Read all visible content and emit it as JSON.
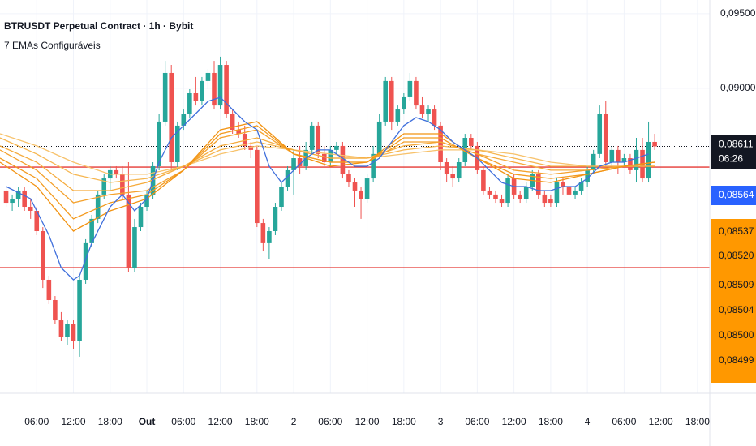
{
  "chart_data": {
    "type": "candlestick",
    "title": "BTRUSDT Perpetual Contract · 1h · Bybit",
    "subtitle": "7 EMAs Configuráveis",
    "up_color": "#26a69a",
    "down_color": "#ef5350",
    "grid": true,
    "xlim": [
      0,
      116
    ],
    "ylim": [
      0.06956,
      0.09592
    ],
    "yticks": [
      {
        "value": 0.095,
        "label": "0,09500"
      },
      {
        "value": 0.09,
        "label": "0,09000"
      }
    ],
    "xticks": [
      {
        "value": 6,
        "label": "06:00"
      },
      {
        "value": 12,
        "label": "12:00"
      },
      {
        "value": 18,
        "label": "18:00"
      },
      {
        "value": 24,
        "label": "Out",
        "bold": true
      },
      {
        "value": 30,
        "label": "06:00"
      },
      {
        "value": 36,
        "label": "12:00"
      },
      {
        "value": 42,
        "label": "18:00"
      },
      {
        "value": 48,
        "label": "2"
      },
      {
        "value": 54,
        "label": "06:00"
      },
      {
        "value": 60,
        "label": "12:00"
      },
      {
        "value": 66,
        "label": "18:00"
      },
      {
        "value": 72,
        "label": "3"
      },
      {
        "value": 78,
        "label": "06:00"
      },
      {
        "value": 84,
        "label": "12:00"
      },
      {
        "value": 90,
        "label": "18:00"
      },
      {
        "value": 96,
        "label": "4"
      },
      {
        "value": 102,
        "label": "06:00"
      },
      {
        "value": 108,
        "label": "12:00"
      },
      {
        "value": 114,
        "label": "18:00"
      }
    ],
    "x": [
      1,
      2,
      3,
      4,
      5,
      6,
      7,
      8,
      9,
      10,
      11,
      12,
      13,
      14,
      15,
      16,
      17,
      18,
      19,
      20,
      21,
      22,
      23,
      24,
      25,
      26,
      27,
      28,
      29,
      30,
      31,
      32,
      33,
      34,
      35,
      36,
      37,
      38,
      39,
      40,
      41,
      42,
      43,
      44,
      45,
      46,
      47,
      48,
      49,
      50,
      51,
      52,
      53,
      54,
      55,
      56,
      57,
      58,
      59,
      60,
      61,
      62,
      63,
      64,
      65,
      66,
      67,
      68,
      69,
      70,
      71,
      72,
      73,
      74,
      75,
      76,
      77,
      78,
      79,
      80,
      81,
      82,
      83,
      84,
      85,
      86,
      87,
      88,
      89,
      90,
      91,
      92,
      93,
      94,
      95,
      96,
      97,
      98,
      99,
      100,
      101,
      102,
      103,
      104,
      105,
      106,
      107
    ],
    "candles": [
      [
        0.08315,
        0.08342,
        0.08206,
        0.08233
      ],
      [
        0.08233,
        0.08288,
        0.08179,
        0.0826
      ],
      [
        0.0826,
        0.08342,
        0.08206,
        0.08315
      ],
      [
        0.08315,
        0.08342,
        0.08179,
        0.08206
      ],
      [
        0.08206,
        0.0826,
        0.08125,
        0.08179
      ],
      [
        0.08179,
        0.08206,
        0.08016,
        0.08043
      ],
      [
        0.08043,
        0.0807,
        0.07662,
        0.07717
      ],
      [
        0.07717,
        0.07744,
        0.07554,
        0.07581
      ],
      [
        0.07581,
        0.07608,
        0.07418,
        0.07445
      ],
      [
        0.07445,
        0.075,
        0.07309,
        0.07336
      ],
      [
        0.07336,
        0.07445,
        0.07282,
        0.07418
      ],
      [
        0.07418,
        0.07445,
        0.07255,
        0.07309
      ],
      [
        0.07309,
        0.07744,
        0.07201,
        0.07717
      ],
      [
        0.07717,
        0.07989,
        0.0769,
        0.07962
      ],
      [
        0.07962,
        0.08152,
        0.07934,
        0.08125
      ],
      [
        0.08125,
        0.08315,
        0.08097,
        0.08288
      ],
      [
        0.08288,
        0.08424,
        0.0826,
        0.08396
      ],
      [
        0.08396,
        0.08478,
        0.08315,
        0.08451
      ],
      [
        0.08451,
        0.08478,
        0.08396,
        0.08424
      ],
      [
        0.08424,
        0.08478,
        0.0826,
        0.08288
      ],
      [
        0.08288,
        0.08505,
        0.07771,
        0.07798
      ],
      [
        0.07798,
        0.08125,
        0.07771,
        0.0807
      ],
      [
        0.0807,
        0.08233,
        0.08043,
        0.08206
      ],
      [
        0.08206,
        0.08315,
        0.08179,
        0.08288
      ],
      [
        0.08288,
        0.08505,
        0.0826,
        0.08478
      ],
      [
        0.08478,
        0.08831,
        0.08451,
        0.08777
      ],
      [
        0.08777,
        0.09184,
        0.0875,
        0.09103
      ],
      [
        0.09103,
        0.09157,
        0.08451,
        0.08505
      ],
      [
        0.08505,
        0.08777,
        0.08451,
        0.0875
      ],
      [
        0.0875,
        0.08858,
        0.08722,
        0.08831
      ],
      [
        0.08831,
        0.08994,
        0.08804,
        0.08967
      ],
      [
        0.08967,
        0.09076,
        0.08885,
        0.08913
      ],
      [
        0.08913,
        0.09076,
        0.08885,
        0.09049
      ],
      [
        0.09049,
        0.0913,
        0.08994,
        0.09103
      ],
      [
        0.09103,
        0.09184,
        0.08858,
        0.08885
      ],
      [
        0.08885,
        0.09212,
        0.08858,
        0.09157
      ],
      [
        0.09157,
        0.09184,
        0.08804,
        0.08831
      ],
      [
        0.08831,
        0.08858,
        0.08695,
        0.08722
      ],
      [
        0.08722,
        0.08777,
        0.08668,
        0.08695
      ],
      [
        0.08695,
        0.0875,
        0.08587,
        0.08614
      ],
      [
        0.08614,
        0.08641,
        0.08532,
        0.08587
      ],
      [
        0.08587,
        0.08614,
        0.0807,
        0.08097
      ],
      [
        0.08097,
        0.08125,
        0.07907,
        0.07962
      ],
      [
        0.07962,
        0.0807,
        0.07853,
        0.08043
      ],
      [
        0.08043,
        0.08233,
        0.08016,
        0.08206
      ],
      [
        0.08206,
        0.08369,
        0.08179,
        0.08342
      ],
      [
        0.08342,
        0.08478,
        0.08315,
        0.08451
      ],
      [
        0.08451,
        0.08587,
        0.08288,
        0.08532
      ],
      [
        0.08532,
        0.08614,
        0.08424,
        0.08478
      ],
      [
        0.08478,
        0.08641,
        0.08451,
        0.08587
      ],
      [
        0.08587,
        0.08777,
        0.0856,
        0.0875
      ],
      [
        0.0875,
        0.08777,
        0.08532,
        0.0856
      ],
      [
        0.0856,
        0.08614,
        0.08478,
        0.08505
      ],
      [
        0.08505,
        0.08614,
        0.08478,
        0.08587
      ],
      [
        0.08587,
        0.08641,
        0.0856,
        0.08614
      ],
      [
        0.08614,
        0.08641,
        0.08396,
        0.08424
      ],
      [
        0.08424,
        0.08451,
        0.08342,
        0.08369
      ],
      [
        0.08369,
        0.08396,
        0.08206,
        0.08315
      ],
      [
        0.08315,
        0.08342,
        0.08125,
        0.0826
      ],
      [
        0.0826,
        0.08424,
        0.08233,
        0.08396
      ],
      [
        0.08396,
        0.08614,
        0.08369,
        0.0856
      ],
      [
        0.0856,
        0.08831,
        0.08532,
        0.08777
      ],
      [
        0.08777,
        0.09076,
        0.0875,
        0.09049
      ],
      [
        0.09049,
        0.09076,
        0.08722,
        0.08777
      ],
      [
        0.08777,
        0.08885,
        0.0875,
        0.08858
      ],
      [
        0.08858,
        0.08967,
        0.08831,
        0.0894
      ],
      [
        0.0894,
        0.09103,
        0.08913,
        0.09049
      ],
      [
        0.09049,
        0.09076,
        0.08858,
        0.08885
      ],
      [
        0.08885,
        0.0894,
        0.08804,
        0.08831
      ],
      [
        0.08831,
        0.08885,
        0.08777,
        0.08858
      ],
      [
        0.08858,
        0.08885,
        0.08722,
        0.0875
      ],
      [
        0.0875,
        0.08777,
        0.08451,
        0.08505
      ],
      [
        0.08505,
        0.08532,
        0.08369,
        0.08424
      ],
      [
        0.08424,
        0.08478,
        0.08342,
        0.08396
      ],
      [
        0.08396,
        0.08532,
        0.08369,
        0.08505
      ],
      [
        0.08505,
        0.08695,
        0.08478,
        0.08668
      ],
      [
        0.08668,
        0.08695,
        0.08587,
        0.08614
      ],
      [
        0.08614,
        0.08641,
        0.08424,
        0.08451
      ],
      [
        0.08451,
        0.08478,
        0.08288,
        0.08315
      ],
      [
        0.08315,
        0.08342,
        0.0826,
        0.08288
      ],
      [
        0.08288,
        0.08315,
        0.08233,
        0.0826
      ],
      [
        0.0826,
        0.08288,
        0.08206,
        0.08233
      ],
      [
        0.08233,
        0.08424,
        0.08206,
        0.08396
      ],
      [
        0.08396,
        0.08424,
        0.0826,
        0.08288
      ],
      [
        0.08288,
        0.08315,
        0.08233,
        0.0826
      ],
      [
        0.0826,
        0.08369,
        0.08233,
        0.08342
      ],
      [
        0.08342,
        0.08451,
        0.08315,
        0.08424
      ],
      [
        0.08424,
        0.08451,
        0.0826,
        0.08288
      ],
      [
        0.08288,
        0.08315,
        0.08206,
        0.08233
      ],
      [
        0.0826,
        0.08288,
        0.08206,
        0.08233
      ],
      [
        0.08233,
        0.08396,
        0.08206,
        0.08369
      ],
      [
        0.08369,
        0.08396,
        0.08288,
        0.08342
      ],
      [
        0.08342,
        0.08369,
        0.0826,
        0.08288
      ],
      [
        0.08288,
        0.08342,
        0.0826,
        0.08315
      ],
      [
        0.08315,
        0.08396,
        0.08288,
        0.08369
      ],
      [
        0.08369,
        0.08478,
        0.08342,
        0.08451
      ],
      [
        0.08451,
        0.08587,
        0.08424,
        0.0856
      ],
      [
        0.0856,
        0.08885,
        0.08532,
        0.08831
      ],
      [
        0.08831,
        0.08913,
        0.08478,
        0.08505
      ],
      [
        0.08505,
        0.08614,
        0.08478,
        0.08587
      ],
      [
        0.08587,
        0.08614,
        0.08424,
        0.08505
      ],
      [
        0.08505,
        0.0856,
        0.08478,
        0.08532
      ],
      [
        0.08532,
        0.0856,
        0.08424,
        0.08451
      ],
      [
        0.08451,
        0.08668,
        0.08369,
        0.08587
      ],
      [
        0.08587,
        0.08668,
        0.08369,
        0.08396
      ],
      [
        0.08396,
        0.08777,
        0.08369,
        0.08641
      ],
      [
        0.08641,
        0.08695,
        0.08587,
        0.08611
      ]
    ],
    "emas": [
      {
        "color": "#f7c26b",
        "x": [
          0,
          6,
          12,
          18,
          24,
          30,
          36,
          42,
          48,
          54,
          60,
          66,
          72,
          78,
          84,
          90,
          96,
          102,
          107
        ],
        "values": [
          0.08695,
          0.08614,
          0.08505,
          0.08424,
          0.08424,
          0.08478,
          0.0856,
          0.08614,
          0.08587,
          0.0856,
          0.08532,
          0.0856,
          0.08587,
          0.08587,
          0.0856,
          0.08505,
          0.08478,
          0.08478,
          0.08478
        ]
      },
      {
        "color": "#f6b650",
        "x": [
          0,
          6,
          12,
          18,
          24,
          30,
          36,
          42,
          48,
          54,
          60,
          66,
          72,
          78,
          84,
          90,
          96,
          102,
          107
        ],
        "values": [
          0.08668,
          0.0856,
          0.08424,
          0.08369,
          0.08396,
          0.08478,
          0.08587,
          0.08641,
          0.08587,
          0.08532,
          0.08532,
          0.08587,
          0.08614,
          0.08587,
          0.08532,
          0.08478,
          0.08478,
          0.08478,
          0.08478
        ]
      },
      {
        "color": "#f5ab3c",
        "x": [
          0,
          6,
          12,
          18,
          24,
          30,
          36,
          42,
          48,
          54,
          60,
          66,
          72,
          78,
          84,
          90,
          96,
          102,
          107
        ],
        "values": [
          0.08614,
          0.08505,
          0.08315,
          0.08315,
          0.08369,
          0.08478,
          0.08614,
          0.08668,
          0.08587,
          0.08532,
          0.08532,
          0.08614,
          0.08641,
          0.0856,
          0.08505,
          0.08451,
          0.08451,
          0.08478,
          0.08478
        ]
      },
      {
        "color": "#f4a12c",
        "x": [
          0,
          6,
          12,
          18,
          24,
          30,
          36,
          42,
          48,
          54,
          60,
          66,
          72,
          78,
          84,
          90,
          96,
          102,
          107
        ],
        "values": [
          0.08587,
          0.08451,
          0.08233,
          0.08288,
          0.08315,
          0.08451,
          0.08668,
          0.08722,
          0.0856,
          0.08505,
          0.08505,
          0.08641,
          0.08641,
          0.0856,
          0.08451,
          0.08424,
          0.08451,
          0.08478,
          0.08505
        ]
      },
      {
        "color": "#f39a1e",
        "x": [
          0,
          6,
          12,
          18,
          24,
          30,
          36,
          42,
          48,
          54,
          60,
          66,
          72,
          78,
          84,
          90,
          96,
          102,
          107
        ],
        "values": [
          0.08532,
          0.08396,
          0.08125,
          0.08233,
          0.08288,
          0.08451,
          0.08695,
          0.0875,
          0.0856,
          0.08505,
          0.08505,
          0.08668,
          0.08668,
          0.08532,
          0.08424,
          0.08396,
          0.08424,
          0.08478,
          0.08505
        ]
      },
      {
        "color": "#f29312",
        "x": [
          0,
          6,
          12,
          18,
          24,
          30,
          36,
          42,
          48,
          54,
          60,
          66,
          72,
          78,
          84,
          90,
          96,
          102,
          107
        ],
        "values": [
          0.08505,
          0.08342,
          0.08043,
          0.08179,
          0.0826,
          0.08451,
          0.08722,
          0.08777,
          0.0856,
          0.08478,
          0.08505,
          0.08695,
          0.08695,
          0.08532,
          0.08396,
          0.08369,
          0.08424,
          0.08478,
          0.08505
        ]
      },
      {
        "color": "#3f6fdc",
        "x": [
          1,
          5,
          8,
          10,
          12,
          13,
          15,
          18,
          20,
          22,
          24,
          26,
          28,
          30,
          32,
          34,
          36,
          38,
          40,
          42,
          44,
          46,
          48,
          50,
          52,
          54,
          56,
          58,
          60,
          62,
          64,
          66,
          68,
          70,
          72,
          74,
          76,
          78,
          80,
          82,
          84,
          86,
          88,
          90,
          92,
          94,
          96,
          98,
          100,
          102,
          104,
          106
        ],
        "values": [
          0.08342,
          0.0826,
          0.08016,
          0.07798,
          0.07717,
          0.07744,
          0.07962,
          0.08206,
          0.08288,
          0.08179,
          0.0826,
          0.08505,
          0.08668,
          0.0875,
          0.08831,
          0.08913,
          0.0894,
          0.08858,
          0.08777,
          0.08722,
          0.08478,
          0.08369,
          0.08451,
          0.08532,
          0.08587,
          0.08587,
          0.08532,
          0.08478,
          0.08478,
          0.08532,
          0.08641,
          0.0875,
          0.08804,
          0.08777,
          0.08722,
          0.08641,
          0.08587,
          0.08532,
          0.08451,
          0.08369,
          0.08342,
          0.08342,
          0.08315,
          0.08315,
          0.08342,
          0.08342,
          0.08396,
          0.08478,
          0.08505,
          0.08505,
          0.08532,
          0.0856
        ]
      }
    ],
    "hlines": [
      {
        "value": 0.08472,
        "color": "#e53935"
      },
      {
        "value": 0.07798,
        "color": "#e53935"
      }
    ],
    "last_price": {
      "value": 0.08611,
      "label": "0,08611",
      "countdown": "06:26"
    },
    "price_labels": [
      {
        "value": 0.08564,
        "label": "0,08564",
        "color": "#2962ff"
      },
      {
        "value": 0.08537,
        "label": "0,08537",
        "color": "#ff9800"
      },
      {
        "value": 0.0852,
        "label": "0,08520",
        "color": "#ff9800"
      },
      {
        "value": 0.08509,
        "label": "0,08509",
        "color": "#ff9800"
      },
      {
        "value": 0.08504,
        "label": "0,08504",
        "color": "#ff9800"
      },
      {
        "value": 0.085,
        "label": "0,08500",
        "color": "#ff9800"
      },
      {
        "value": 0.08499,
        "label": "0,08499",
        "color": "#ff9800"
      }
    ]
  }
}
